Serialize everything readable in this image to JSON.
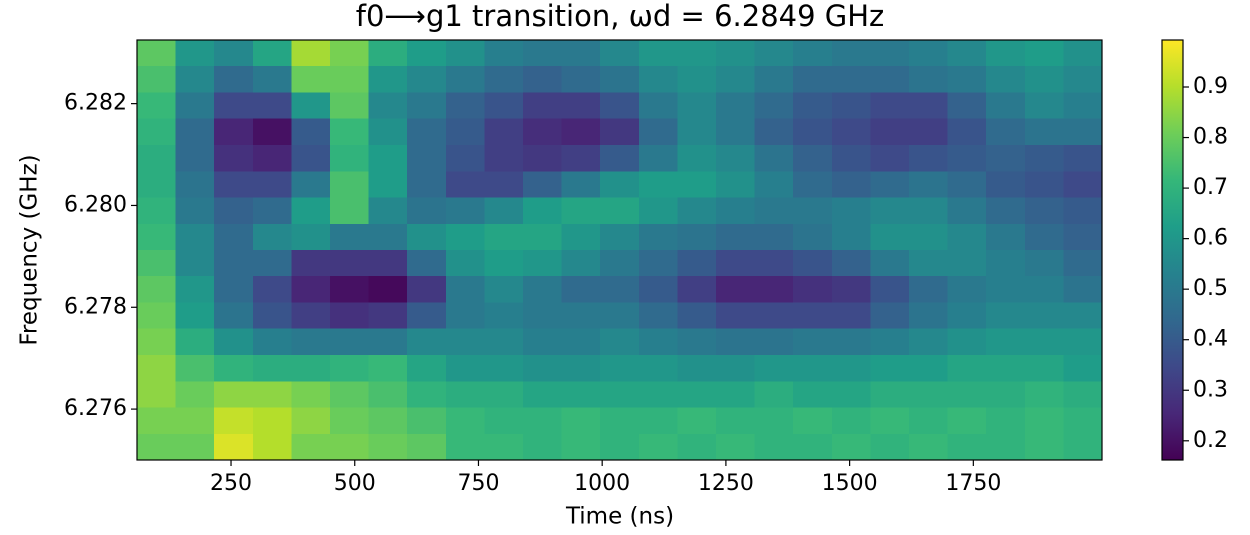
{
  "chart_data": {
    "type": "heatmap",
    "title": "f0⟶g1 transition, ωd = 6.2849 GHz",
    "x_label": "Time (ns)",
    "y_label": "Frequency (GHz)",
    "xlim": [
      60,
      2010
    ],
    "ylim": [
      6.275,
      6.28325
    ],
    "xticks": [
      250,
      500,
      750,
      1000,
      1250,
      1500,
      1750
    ],
    "yticks": [
      {
        "value": 6.276,
        "label": "6.276"
      },
      {
        "value": 6.278,
        "label": "6.278"
      },
      {
        "value": 6.28,
        "label": "6.280"
      },
      {
        "value": 6.282,
        "label": "6.282"
      }
    ],
    "zlim": [
      0.162,
      0.993
    ],
    "zticks": [
      0.2,
      0.3,
      0.4,
      0.5,
      0.6,
      0.7,
      0.8,
      0.9
    ],
    "colorscale": [
      "#440154",
      "#482878",
      "#3e4989",
      "#31688e",
      "#26828e",
      "#1f9e89",
      "#35b779",
      "#6ece58",
      "#b5de2b",
      "#fde725"
    ],
    "x": [
      99,
      177,
      255,
      333,
      411,
      489,
      567,
      645,
      723,
      801,
      879,
      957,
      1035,
      1113,
      1191,
      1269,
      1347,
      1425,
      1503,
      1581,
      1659,
      1737,
      1815,
      1893,
      1971
    ],
    "y": [
      6.28299,
      6.28248,
      6.28196,
      6.28145,
      6.28093,
      6.28041,
      6.2799,
      6.27938,
      6.27887,
      6.27835,
      6.27784,
      6.27732,
      6.2768,
      6.27629,
      6.27577,
      6.27526
    ],
    "values": [
      [
        0.78,
        0.6,
        0.55,
        0.65,
        0.88,
        0.82,
        0.68,
        0.62,
        0.58,
        0.52,
        0.5,
        0.5,
        0.55,
        0.6,
        0.6,
        0.58,
        0.55,
        0.52,
        0.5,
        0.5,
        0.52,
        0.55,
        0.6,
        0.62,
        0.58
      ],
      [
        0.75,
        0.55,
        0.45,
        0.5,
        0.8,
        0.8,
        0.6,
        0.55,
        0.5,
        0.45,
        0.42,
        0.45,
        0.48,
        0.55,
        0.58,
        0.55,
        0.5,
        0.45,
        0.45,
        0.45,
        0.48,
        0.5,
        0.55,
        0.58,
        0.55
      ],
      [
        0.72,
        0.5,
        0.35,
        0.35,
        0.6,
        0.78,
        0.55,
        0.5,
        0.42,
        0.38,
        0.32,
        0.32,
        0.38,
        0.5,
        0.55,
        0.5,
        0.45,
        0.4,
        0.38,
        0.35,
        0.35,
        0.42,
        0.5,
        0.55,
        0.52
      ],
      [
        0.7,
        0.45,
        0.25,
        0.2,
        0.4,
        0.72,
        0.58,
        0.45,
        0.4,
        0.32,
        0.27,
        0.25,
        0.3,
        0.45,
        0.55,
        0.5,
        0.42,
        0.38,
        0.35,
        0.32,
        0.32,
        0.38,
        0.45,
        0.48,
        0.48
      ],
      [
        0.68,
        0.45,
        0.28,
        0.25,
        0.38,
        0.7,
        0.62,
        0.45,
        0.38,
        0.32,
        0.3,
        0.32,
        0.4,
        0.5,
        0.58,
        0.55,
        0.48,
        0.42,
        0.38,
        0.35,
        0.38,
        0.4,
        0.42,
        0.4,
        0.38
      ],
      [
        0.68,
        0.48,
        0.35,
        0.35,
        0.5,
        0.75,
        0.62,
        0.45,
        0.35,
        0.35,
        0.42,
        0.5,
        0.58,
        0.62,
        0.62,
        0.58,
        0.52,
        0.45,
        0.42,
        0.45,
        0.48,
        0.45,
        0.4,
        0.38,
        0.35
      ],
      [
        0.7,
        0.5,
        0.42,
        0.45,
        0.62,
        0.75,
        0.55,
        0.48,
        0.5,
        0.55,
        0.62,
        0.65,
        0.65,
        0.6,
        0.55,
        0.52,
        0.5,
        0.5,
        0.52,
        0.55,
        0.55,
        0.5,
        0.45,
        0.42,
        0.4
      ],
      [
        0.72,
        0.55,
        0.45,
        0.55,
        0.58,
        0.5,
        0.5,
        0.58,
        0.62,
        0.65,
        0.65,
        0.6,
        0.55,
        0.5,
        0.48,
        0.45,
        0.45,
        0.48,
        0.52,
        0.58,
        0.58,
        0.55,
        0.5,
        0.45,
        0.42
      ],
      [
        0.75,
        0.55,
        0.45,
        0.45,
        0.3,
        0.3,
        0.3,
        0.45,
        0.58,
        0.62,
        0.6,
        0.55,
        0.5,
        0.45,
        0.4,
        0.35,
        0.35,
        0.38,
        0.42,
        0.5,
        0.55,
        0.55,
        0.52,
        0.5,
        0.45
      ],
      [
        0.78,
        0.6,
        0.45,
        0.35,
        0.25,
        0.2,
        0.18,
        0.3,
        0.5,
        0.55,
        0.5,
        0.45,
        0.45,
        0.4,
        0.32,
        0.25,
        0.25,
        0.28,
        0.3,
        0.38,
        0.45,
        0.5,
        0.52,
        0.52,
        0.48
      ],
      [
        0.8,
        0.62,
        0.48,
        0.38,
        0.32,
        0.28,
        0.3,
        0.4,
        0.5,
        0.52,
        0.5,
        0.5,
        0.5,
        0.45,
        0.4,
        0.35,
        0.35,
        0.35,
        0.35,
        0.42,
        0.48,
        0.52,
        0.55,
        0.55,
        0.55
      ],
      [
        0.82,
        0.68,
        0.58,
        0.52,
        0.5,
        0.5,
        0.5,
        0.55,
        0.55,
        0.55,
        0.52,
        0.52,
        0.55,
        0.52,
        0.5,
        0.48,
        0.48,
        0.5,
        0.5,
        0.52,
        0.55,
        0.58,
        0.6,
        0.6,
        0.6
      ],
      [
        0.85,
        0.75,
        0.7,
        0.68,
        0.68,
        0.7,
        0.72,
        0.65,
        0.6,
        0.6,
        0.58,
        0.58,
        0.6,
        0.6,
        0.58,
        0.58,
        0.6,
        0.6,
        0.6,
        0.62,
        0.62,
        0.65,
        0.65,
        0.65,
        0.62
      ],
      [
        0.85,
        0.8,
        0.85,
        0.85,
        0.82,
        0.78,
        0.75,
        0.7,
        0.68,
        0.68,
        0.65,
        0.65,
        0.65,
        0.65,
        0.65,
        0.65,
        0.68,
        0.65,
        0.65,
        0.68,
        0.68,
        0.68,
        0.68,
        0.7,
        0.68
      ],
      [
        0.82,
        0.82,
        0.92,
        0.9,
        0.85,
        0.8,
        0.78,
        0.75,
        0.72,
        0.7,
        0.7,
        0.72,
        0.7,
        0.7,
        0.72,
        0.7,
        0.7,
        0.72,
        0.7,
        0.72,
        0.7,
        0.72,
        0.7,
        0.72,
        0.7
      ],
      [
        0.8,
        0.8,
        0.95,
        0.9,
        0.82,
        0.82,
        0.8,
        0.78,
        0.72,
        0.72,
        0.7,
        0.72,
        0.7,
        0.72,
        0.7,
        0.72,
        0.7,
        0.7,
        0.72,
        0.7,
        0.72,
        0.7,
        0.7,
        0.72,
        0.7
      ]
    ]
  }
}
